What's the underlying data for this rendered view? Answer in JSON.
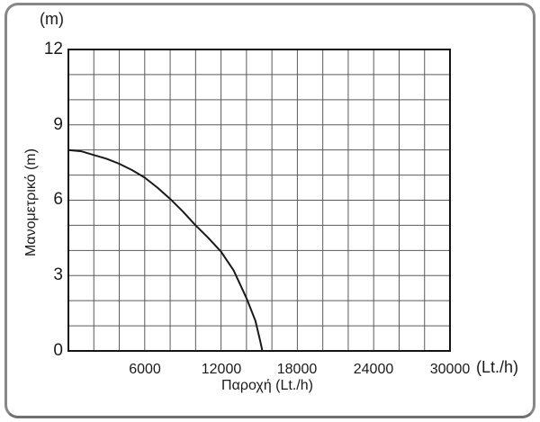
{
  "frame": {
    "border_color": "#878787"
  },
  "chart_data": {
    "type": "line",
    "title": "",
    "xlabel": "Παροχή (Lt./h)",
    "ylabel": "Μανομετρικό (m)",
    "x_unit_label": "(Lt./h)",
    "y_unit_label": "(m)",
    "xlim": [
      0,
      30000
    ],
    "ylim": [
      0,
      12
    ],
    "x_tick_values": [
      6000,
      12000,
      18000,
      24000,
      30000
    ],
    "x_tick_labels": [
      "6000",
      "12000",
      "18000",
      "24000",
      "30000"
    ],
    "y_tick_values": [
      12,
      9,
      6,
      3,
      0
    ],
    "y_tick_labels": [
      "12",
      "9",
      "6",
      "3",
      "0"
    ],
    "x_minor_step": 2000,
    "y_minor_step": 1,
    "grid": true,
    "legend": "none",
    "series": [
      {
        "name": "pump-head-curve",
        "points": [
          [
            0,
            8.0
          ],
          [
            1000,
            7.95
          ],
          [
            2000,
            7.8
          ],
          [
            3000,
            7.65
          ],
          [
            4000,
            7.45
          ],
          [
            5000,
            7.2
          ],
          [
            6000,
            6.9
          ],
          [
            7000,
            6.5
          ],
          [
            8000,
            6.05
          ],
          [
            9000,
            5.55
          ],
          [
            10000,
            5.0
          ],
          [
            11000,
            4.5
          ],
          [
            12000,
            3.95
          ],
          [
            13000,
            3.2
          ],
          [
            14000,
            2.1
          ],
          [
            14700,
            1.2
          ],
          [
            15100,
            0.35
          ],
          [
            15250,
            0
          ]
        ]
      }
    ],
    "colors": {
      "curve": "#1a1a1a",
      "grid": "#5a5a5a",
      "box": "#141414",
      "text": "#1a1a1a"
    }
  }
}
